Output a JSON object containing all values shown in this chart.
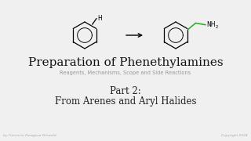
{
  "bg_color": "#f0f0f0",
  "title": "Preparation of Phenethylamines",
  "subtitle": "Reagents, Mechanisms, Scope and Side Reactions",
  "part_text": "Part 2:",
  "part_subtitle": "From Arenes and Aryl Halides",
  "footer_left": "by Florencio Zaragoza Dörwald",
  "footer_right": "Copyright 2024",
  "title_color": "#111111",
  "subtitle_color": "#999999",
  "part_color": "#222222",
  "footer_color": "#aaaaaa"
}
